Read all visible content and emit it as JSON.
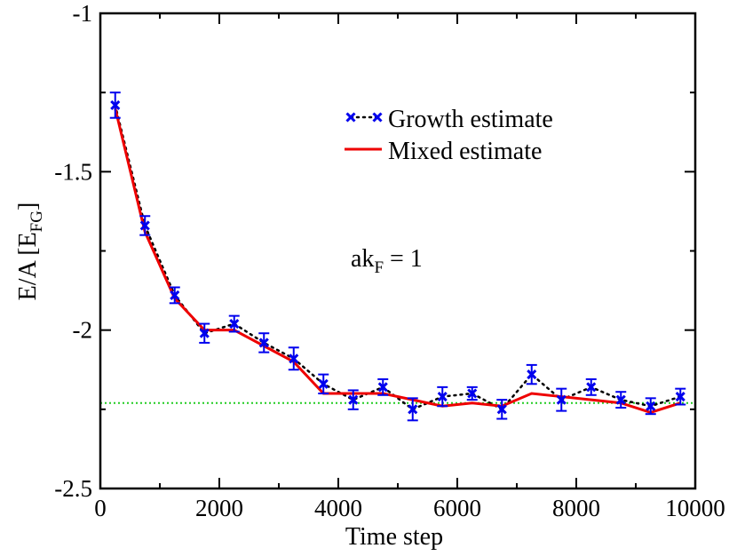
{
  "chart_data": {
    "type": "line",
    "xlabel": "Time step",
    "ylabel": {
      "main": "E/A [E",
      "sub": "FG",
      "close": "]"
    },
    "xlim": [
      0,
      10000
    ],
    "ylim": [
      -2.5,
      -1
    ],
    "x_ticks": [
      0,
      2000,
      4000,
      6000,
      8000,
      10000
    ],
    "y_ticks": [
      -2.5,
      -2,
      -1.5,
      -1
    ],
    "x_tick_labels": [
      "0",
      "2000",
      "4000",
      "6000",
      "8000",
      "10000"
    ],
    "y_tick_labels": [
      "-2.5",
      "-2",
      "-1.5",
      "-1"
    ],
    "grid": false,
    "legend_position": "top-right",
    "annotation": {
      "main": "ak",
      "sub": "F",
      "rest": " = 1"
    },
    "reference_line": {
      "y": -2.23,
      "color": "#22cc22"
    },
    "series": [
      {
        "name": "Growth estimate",
        "style": "dotted-with-x-markers",
        "color": "#0000ee",
        "line_color": "#000000",
        "x": [
          250,
          750,
          1250,
          1750,
          2250,
          2750,
          3250,
          3750,
          4250,
          4750,
          5250,
          5750,
          6250,
          6750,
          7250,
          7750,
          8250,
          8750,
          9250,
          9750
        ],
        "y": [
          -1.29,
          -1.67,
          -1.89,
          -2.01,
          -1.98,
          -2.04,
          -2.09,
          -2.17,
          -2.22,
          -2.18,
          -2.25,
          -2.21,
          -2.2,
          -2.25,
          -2.14,
          -2.22,
          -2.18,
          -2.22,
          -2.24,
          -2.21
        ],
        "err": [
          0.04,
          0.03,
          0.025,
          0.03,
          0.025,
          0.03,
          0.035,
          0.03,
          0.03,
          0.025,
          0.035,
          0.03,
          0.02,
          0.03,
          0.03,
          0.035,
          0.025,
          0.025,
          0.025,
          0.025
        ]
      },
      {
        "name": "Mixed estimate",
        "style": "solid",
        "color": "#ee0000",
        "x": [
          250,
          750,
          1250,
          1750,
          2250,
          2750,
          3250,
          3750,
          4250,
          4750,
          5250,
          5750,
          6250,
          6750,
          7250,
          7750,
          8250,
          8750,
          9250,
          9750
        ],
        "y": [
          -1.3,
          -1.69,
          -1.9,
          -2.0,
          -2.0,
          -2.05,
          -2.1,
          -2.2,
          -2.2,
          -2.2,
          -2.22,
          -2.24,
          -2.23,
          -2.24,
          -2.2,
          -2.21,
          -2.22,
          -2.23,
          -2.26,
          -2.23
        ]
      }
    ]
  }
}
